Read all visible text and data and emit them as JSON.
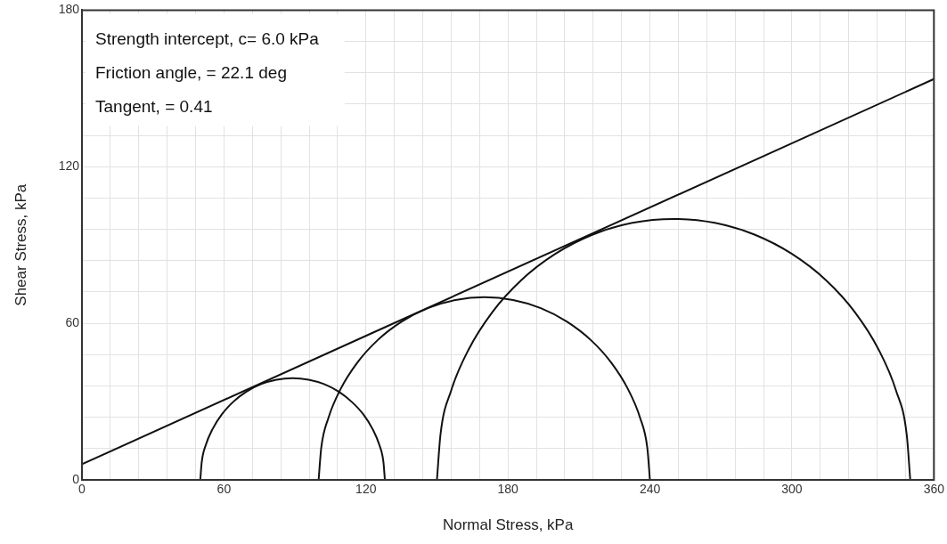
{
  "chart_data": {
    "type": "line",
    "xlabel": "Normal Stress, kPa",
    "ylabel": "Shear Stress, kPa",
    "xlim": [
      0,
      360
    ],
    "ylim": [
      0,
      180
    ],
    "xticks": [
      0,
      {
        "value": 12,
        "label": null
      },
      {
        "value": 24,
        "label": null
      },
      {
        "value": 36,
        "label": null
      },
      {
        "value": 48,
        "label": null
      },
      60,
      {
        "value": 72,
        "label": null
      },
      {
        "value": 84,
        "label": null
      },
      {
        "value": 96,
        "label": null
      },
      {
        "value": 108,
        "label": null
      },
      120,
      {
        "value": 132,
        "label": null
      },
      {
        "value": 144,
        "label": null
      },
      {
        "value": 156,
        "label": null
      },
      {
        "value": 168,
        "label": null
      },
      180,
      {
        "value": 192,
        "label": null
      },
      {
        "value": 204,
        "label": null
      },
      {
        "value": 216,
        "label": null
      },
      {
        "value": 228,
        "label": null
      },
      240,
      {
        "value": 252,
        "label": null
      },
      {
        "value": 264,
        "label": null
      },
      {
        "value": 276,
        "label": null
      },
      {
        "value": 288,
        "label": null
      },
      300,
      {
        "value": 312,
        "label": null
      },
      {
        "value": 324,
        "label": null
      },
      {
        "value": 336,
        "label": null
      },
      {
        "value": 348,
        "label": null
      },
      360
    ],
    "yticks": [
      0,
      {
        "value": 12,
        "label": null
      },
      {
        "value": 24,
        "label": null
      },
      {
        "value": 36,
        "label": null
      },
      {
        "value": 48,
        "label": null
      },
      60,
      {
        "value": 72,
        "label": null
      },
      {
        "value": 84,
        "label": null
      },
      {
        "value": 96,
        "label": null
      },
      {
        "value": 108,
        "label": null
      },
      120,
      {
        "value": 132,
        "label": null
      },
      {
        "value": 144,
        "label": null
      },
      {
        "value": 156,
        "label": null
      },
      {
        "value": 168,
        "label": null
      },
      180
    ],
    "grid": true,
    "legend": false,
    "marker": "none",
    "line_style": "solid",
    "annotations": [
      "Strength intercept, c= 6.0 kPa",
      "Friction angle, = 22.1 deg",
      "Tangent, = 0.41"
    ],
    "series": [
      {
        "color": "#111111",
        "x": [
          0,
          360
        ],
        "values": [
          6,
          153.6
        ]
      },
      {
        "color": "#111111",
        "x": [
          50,
          50.6,
          52.3,
          55.2,
          59.1,
          63.9,
          69.5,
          75.7,
          82.2,
          89,
          95.8,
          102.3,
          108.5,
          114,
          118.9,
          122.8,
          125.7,
          127.4,
          128
        ],
        "values": [
          0,
          6.8,
          13.3,
          19.5,
          25.1,
          29.9,
          33.8,
          36.7,
          38.4,
          39,
          38.4,
          36.7,
          33.8,
          29.9,
          25.1,
          19.5,
          13.3,
          6.8,
          0
        ]
      },
      {
        "color": "#111111",
        "x": [
          100,
          101.1,
          104.2,
          109.4,
          116.4,
          125,
          135,
          146.1,
          157.8,
          170,
          182.2,
          193.9,
          205,
          215,
          223.6,
          230.6,
          235.8,
          238.9,
          240
        ],
        "values": [
          0,
          12.2,
          23.9,
          35,
          45,
          53.6,
          60.6,
          65.8,
          68.9,
          70,
          68.9,
          65.8,
          60.6,
          53.6,
          45,
          35,
          23.9,
          12.2,
          0
        ]
      },
      {
        "color": "#111111",
        "x": [
          150,
          151.5,
          156,
          163.4,
          173.4,
          185.7,
          200,
          215.8,
          232.6,
          250,
          267.4,
          284.2,
          300,
          314.3,
          326.6,
          336.6,
          344,
          348.5,
          350
        ],
        "values": [
          0,
          17.4,
          34.2,
          50,
          64.3,
          76.6,
          86.6,
          94,
          98.5,
          100,
          98.5,
          94,
          86.6,
          76.6,
          64.3,
          50,
          34.2,
          17.4,
          0
        ]
      }
    ]
  }
}
